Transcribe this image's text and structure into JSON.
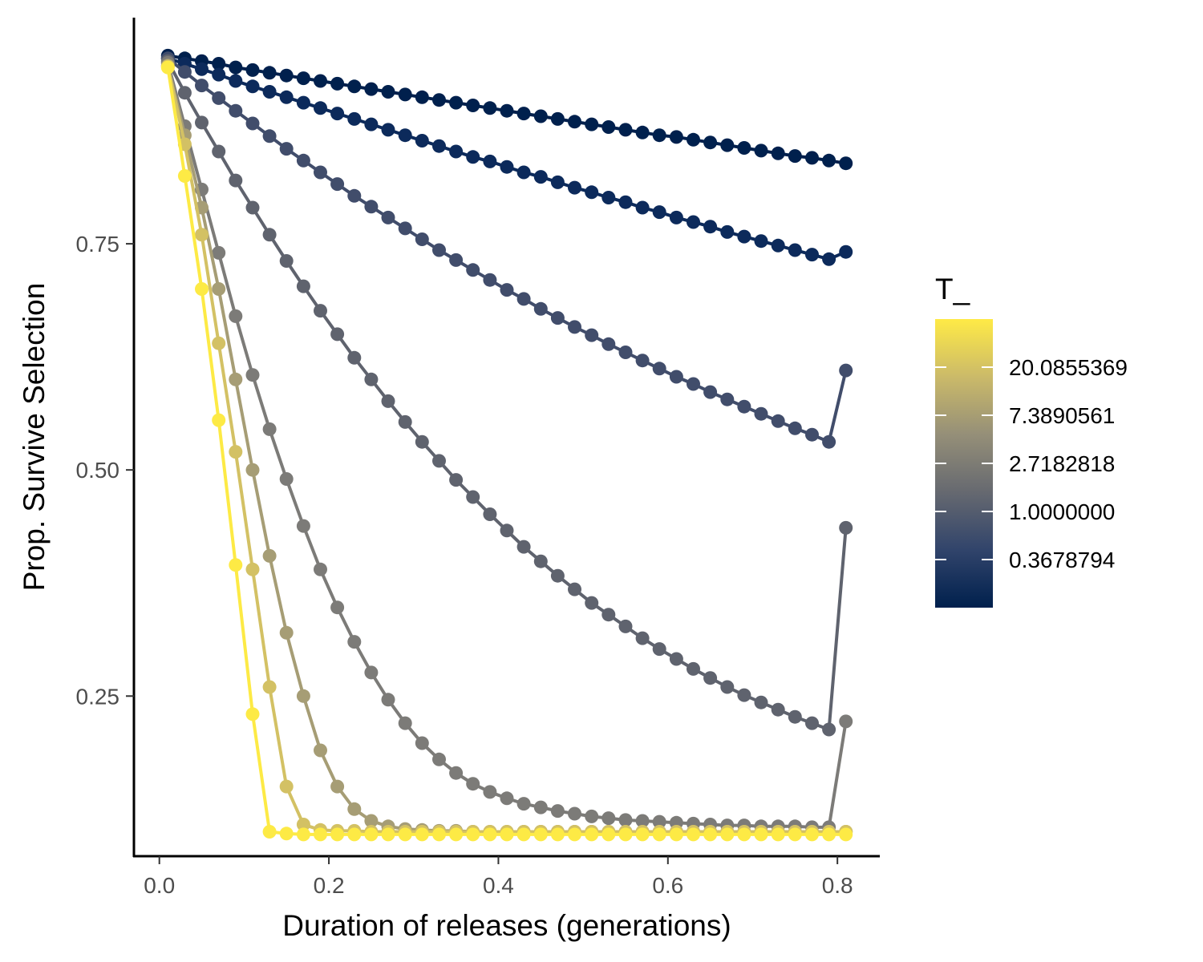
{
  "chart_data": {
    "type": "line",
    "title": "",
    "xlabel": "Duration of releases (generations)",
    "ylabel": "Prop. Survive Selection",
    "xlim": [
      -0.03,
      0.85
    ],
    "ylim": [
      0.073,
      1.0
    ],
    "x_ticks": [
      0.0,
      0.2,
      0.4,
      0.6,
      0.8
    ],
    "x_tick_labels": [
      "0.0",
      "0.2",
      "0.4",
      "0.6",
      "0.8"
    ],
    "y_ticks": [
      0.25,
      0.5,
      0.75
    ],
    "y_tick_labels": [
      "0.25",
      "0.50",
      "0.75"
    ],
    "grid": false,
    "markers": true,
    "x": [
      0.01,
      0.03,
      0.05,
      0.07,
      0.09,
      0.11,
      0.13,
      0.15,
      0.17,
      0.19,
      0.21,
      0.23,
      0.25,
      0.27,
      0.29,
      0.31,
      0.33,
      0.35,
      0.37,
      0.39,
      0.41,
      0.43,
      0.45,
      0.47,
      0.49,
      0.51,
      0.53,
      0.55,
      0.57,
      0.59,
      0.61,
      0.63,
      0.65,
      0.67,
      0.69,
      0.71,
      0.73,
      0.75,
      0.77,
      0.79,
      0.81
    ],
    "series": [
      {
        "T": 0.1353353,
        "color": "#00204d",
        "values": [
          0.958,
          0.955,
          0.952,
          0.949,
          0.945,
          0.942,
          0.939,
          0.936,
          0.933,
          0.93,
          0.927,
          0.924,
          0.921,
          0.918,
          0.915,
          0.912,
          0.909,
          0.906,
          0.903,
          0.9,
          0.897,
          0.894,
          0.891,
          0.888,
          0.885,
          0.882,
          0.879,
          0.876,
          0.873,
          0.87,
          0.868,
          0.865,
          0.862,
          0.859,
          0.856,
          0.853,
          0.85,
          0.847,
          0.845,
          0.842,
          0.839
        ]
      },
      {
        "T": 0.3678794,
        "color": "#0c2a5b",
        "values": [
          0.955,
          0.949,
          0.943,
          0.937,
          0.93,
          0.924,
          0.918,
          0.912,
          0.906,
          0.9,
          0.894,
          0.888,
          0.882,
          0.876,
          0.87,
          0.864,
          0.858,
          0.852,
          0.846,
          0.841,
          0.835,
          0.829,
          0.824,
          0.818,
          0.812,
          0.807,
          0.801,
          0.796,
          0.79,
          0.785,
          0.779,
          0.774,
          0.769,
          0.763,
          0.758,
          0.753,
          0.748,
          0.743,
          0.738,
          0.733,
          0.741
        ]
      },
      {
        "T": 1.0,
        "color": "#414d6b",
        "values": [
          0.955,
          0.94,
          0.925,
          0.911,
          0.897,
          0.883,
          0.869,
          0.855,
          0.842,
          0.829,
          0.816,
          0.803,
          0.791,
          0.779,
          0.767,
          0.755,
          0.743,
          0.732,
          0.721,
          0.71,
          0.699,
          0.689,
          0.678,
          0.668,
          0.658,
          0.649,
          0.639,
          0.63,
          0.621,
          0.612,
          0.603,
          0.595,
          0.586,
          0.578,
          0.57,
          0.562,
          0.554,
          0.546,
          0.539,
          0.531,
          0.61
        ]
      },
      {
        "T": 2.7182818,
        "color": "#5f636e",
        "values": [
          0.952,
          0.917,
          0.884,
          0.852,
          0.82,
          0.79,
          0.76,
          0.731,
          0.703,
          0.676,
          0.65,
          0.624,
          0.6,
          0.576,
          0.553,
          0.531,
          0.51,
          0.489,
          0.47,
          0.451,
          0.433,
          0.415,
          0.399,
          0.383,
          0.368,
          0.353,
          0.34,
          0.327,
          0.314,
          0.302,
          0.291,
          0.28,
          0.27,
          0.26,
          0.251,
          0.243,
          0.235,
          0.227,
          0.22,
          0.213,
          0.436
        ]
      },
      {
        "T": 7.3890561,
        "color": "#7c7b78",
        "values": [
          0.95,
          0.88,
          0.81,
          0.74,
          0.67,
          0.605,
          0.545,
          0.49,
          0.438,
          0.39,
          0.348,
          0.31,
          0.276,
          0.246,
          0.22,
          0.198,
          0.18,
          0.165,
          0.153,
          0.144,
          0.137,
          0.131,
          0.127,
          0.123,
          0.12,
          0.117,
          0.115,
          0.113,
          0.112,
          0.111,
          0.11,
          0.109,
          0.108,
          0.107,
          0.107,
          0.106,
          0.106,
          0.106,
          0.105,
          0.105,
          0.222
        ]
      },
      {
        "T": 12.0,
        "color": "#a69d75",
        "values": [
          0.947,
          0.87,
          0.79,
          0.7,
          0.6,
          0.5,
          0.405,
          0.32,
          0.25,
          0.19,
          0.15,
          0.125,
          0.112,
          0.106,
          0.103,
          0.102,
          0.101,
          0.101,
          0.1,
          0.1,
          0.1,
          0.1,
          0.1,
          0.1,
          0.1,
          0.1,
          0.1,
          0.1,
          0.1,
          0.1,
          0.1,
          0.1,
          0.1,
          0.1,
          0.1,
          0.1,
          0.1,
          0.1,
          0.1,
          0.1,
          0.1
        ]
      },
      {
        "T": 20.0855369,
        "color": "#d3c164",
        "values": [
          0.946,
          0.86,
          0.76,
          0.64,
          0.52,
          0.39,
          0.26,
          0.15,
          0.108,
          0.102,
          0.101,
          0.101,
          0.1,
          0.1,
          0.1,
          0.1,
          0.1,
          0.1,
          0.1,
          0.1,
          0.1,
          0.1,
          0.1,
          0.1,
          0.1,
          0.1,
          0.1,
          0.1,
          0.1,
          0.1,
          0.1,
          0.1,
          0.1,
          0.1,
          0.1,
          0.1,
          0.1,
          0.1,
          0.1,
          0.1,
          0.1
        ]
      },
      {
        "T": 54.59815,
        "color": "#fdea45",
        "values": [
          0.945,
          0.825,
          0.7,
          0.555,
          0.395,
          0.23,
          0.1,
          0.098,
          0.097,
          0.097,
          0.097,
          0.097,
          0.097,
          0.097,
          0.097,
          0.097,
          0.097,
          0.097,
          0.097,
          0.097,
          0.097,
          0.097,
          0.097,
          0.097,
          0.097,
          0.097,
          0.097,
          0.097,
          0.097,
          0.097,
          0.097,
          0.097,
          0.097,
          0.097,
          0.097,
          0.097,
          0.097,
          0.097,
          0.097,
          0.097,
          0.097
        ]
      }
    ],
    "legend": {
      "title": "T_",
      "position": "right",
      "type": "colorbar",
      "scale": "log",
      "range": [
        0.1353353,
        54.59815
      ],
      "breaks": [
        0.3678794,
        1.0,
        2.7182818,
        7.3890561,
        20.0855369
      ],
      "break_labels": [
        "0.3678794",
        "1.0000000",
        "2.7182818",
        "7.3890561",
        "20.0855369"
      ],
      "colors": [
        "#00204d",
        "#31446b",
        "#666970",
        "#958f78",
        "#cbba69",
        "#ffea46"
      ]
    }
  }
}
